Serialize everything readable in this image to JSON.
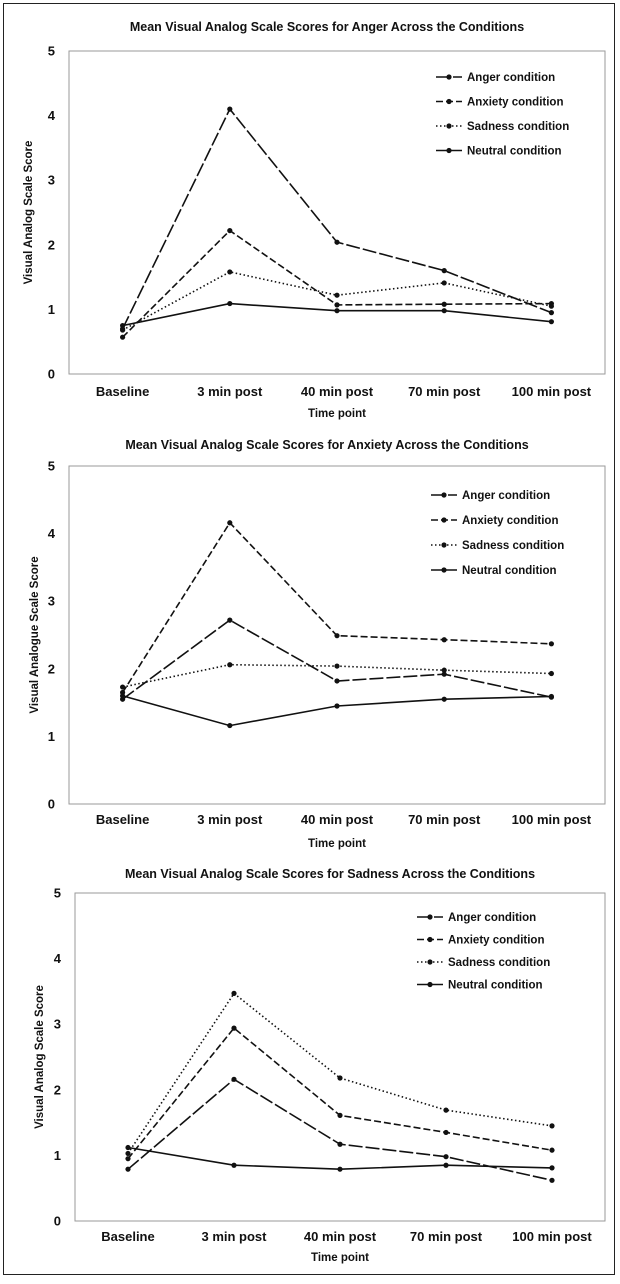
{
  "chart_data": [
    {
      "type": "line",
      "title": "Mean Visual Analog Scale Scores for Anger Across the Conditions",
      "xlabel": "Time point",
      "ylabel": "Visual Analog Scale Score",
      "categories": [
        "Baseline",
        "3 min post",
        "40 min post",
        "70 min post",
        "100 min post"
      ],
      "ylim": [
        0,
        5
      ],
      "yticks": [
        "0",
        "1",
        "2",
        "3",
        "4",
        "5"
      ],
      "legend_position": "top-right",
      "grid": false,
      "series": [
        {
          "name": "Anger condition",
          "style": "long-dash",
          "values": [
            0.7,
            4.1,
            2.04,
            1.6,
            0.95
          ]
        },
        {
          "name": "Anxiety condition",
          "style": "dash",
          "values": [
            0.57,
            2.22,
            1.07,
            1.08,
            1.09
          ]
        },
        {
          "name": "Sadness condition",
          "style": "dot",
          "values": [
            0.68,
            1.58,
            1.22,
            1.41,
            1.05
          ]
        },
        {
          "name": "Neutral condition",
          "style": "solid",
          "values": [
            0.75,
            1.09,
            0.98,
            0.98,
            0.81
          ]
        }
      ]
    },
    {
      "type": "line",
      "title": "Mean Visual Analog Scale Scores for Anxiety Across the Conditions",
      "xlabel": "Time point",
      "ylabel": "Visual Analogue Scale Score",
      "categories": [
        "Baseline",
        "3 min post",
        "40 min post",
        "70 min post",
        "100 min post"
      ],
      "ylim": [
        0,
        5
      ],
      "yticks": [
        "0",
        "1",
        "2",
        "3",
        "4",
        "5"
      ],
      "legend_position": "top-right",
      "grid": false,
      "series": [
        {
          "name": "Anger condition",
          "style": "long-dash",
          "values": [
            1.55,
            2.72,
            1.82,
            1.92,
            1.58
          ]
        },
        {
          "name": "Anxiety condition",
          "style": "dash",
          "values": [
            1.65,
            4.16,
            2.49,
            2.43,
            2.37
          ]
        },
        {
          "name": "Sadness condition",
          "style": "dot",
          "values": [
            1.73,
            2.06,
            2.04,
            1.98,
            1.93
          ]
        },
        {
          "name": "Neutral condition",
          "style": "solid",
          "values": [
            1.6,
            1.16,
            1.45,
            1.55,
            1.59
          ]
        }
      ]
    },
    {
      "type": "line",
      "title": "Mean Visual Analog Scale Scores for Sadness Across the Conditions",
      "xlabel": "Time point",
      "ylabel": "Visual Analog Scale Score",
      "categories": [
        "Baseline",
        "3 min post",
        "40 min post",
        "70 min post",
        "100 min post"
      ],
      "ylim": [
        0,
        5
      ],
      "yticks": [
        "0",
        "1",
        "2",
        "3",
        "4",
        "5"
      ],
      "legend_position": "top-right",
      "grid": false,
      "series": [
        {
          "name": "Anger condition",
          "style": "long-dash",
          "values": [
            0.79,
            2.16,
            1.17,
            0.98,
            0.62
          ]
        },
        {
          "name": "Anxiety condition",
          "style": "dash",
          "values": [
            0.95,
            2.94,
            1.61,
            1.35,
            1.08
          ]
        },
        {
          "name": "Sadness condition",
          "style": "dot",
          "values": [
            1.03,
            3.47,
            2.18,
            1.69,
            1.45
          ]
        },
        {
          "name": "Neutral condition",
          "style": "solid",
          "values": [
            1.12,
            0.85,
            0.79,
            0.85,
            0.81
          ]
        }
      ]
    }
  ]
}
